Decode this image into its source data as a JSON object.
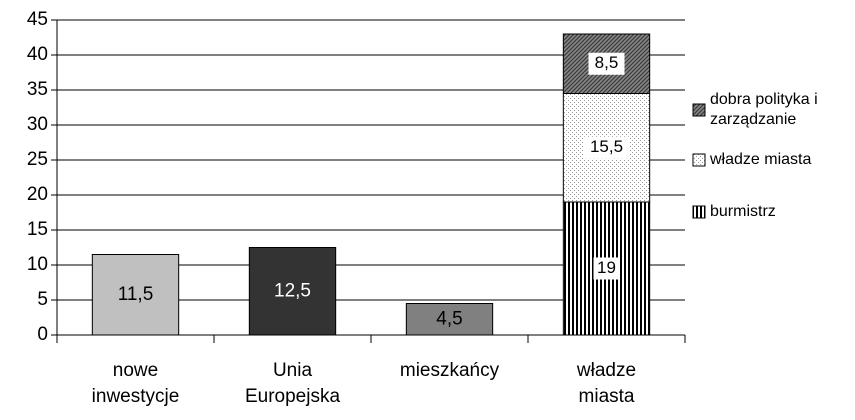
{
  "chart_data": {
    "type": "bar",
    "categories": [
      "nowe inwestycje",
      "Unia Europejska",
      "mieszkańcy",
      "władze miasta"
    ],
    "values": [
      11.5,
      12.5,
      4.5,
      null
    ],
    "value_labels": [
      "11,5",
      "12,5",
      "4,5",
      null
    ],
    "colors": [
      "#c0c0c0",
      "#333333",
      "#808080",
      null
    ],
    "series": [
      {
        "name": "burmistrz",
        "color": "#000000",
        "values": [
          null,
          null,
          null,
          19
        ],
        "value_labels": [
          null,
          null,
          null,
          "19"
        ]
      },
      {
        "name": "władze miasta",
        "color": "#9a9a9a",
        "values": [
          null,
          null,
          null,
          15.5
        ],
        "value_labels": [
          null,
          null,
          null,
          "15,5"
        ]
      },
      {
        "name": "dobra polityka i zarządzanie",
        "color": "#3a3a3a",
        "values": [
          null,
          null,
          null,
          8.5
        ],
        "value_labels": [
          null,
          null,
          null,
          "8,5"
        ]
      }
    ],
    "ylim": [
      0,
      45
    ],
    "yticks": [
      0,
      5,
      10,
      15,
      20,
      25,
      30,
      35,
      40,
      45
    ],
    "grid": true,
    "legend": "right"
  }
}
